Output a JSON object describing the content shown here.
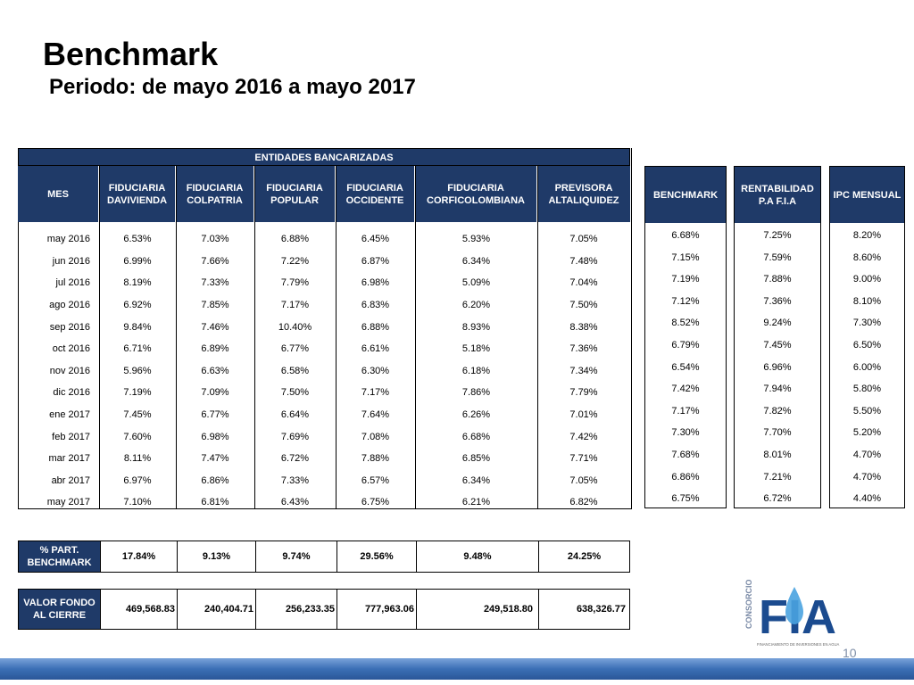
{
  "title": "Benchmark",
  "subtitle": "Periodo: de mayo 2016 a mayo 2017",
  "group_header": "ENTIDADES BANCARIZADAS",
  "columns": {
    "mes": "MES",
    "c1": "FIDUCIARIA DAVIVIENDA",
    "c2": "FIDUCIARIA COLPATRIA",
    "c3": "FIDUCIARIA POPULAR",
    "c4": "FIDUCIARIA OCCIDENTE",
    "c5": "FIDUCIARIA CORFICOLOMBIANA",
    "c6": "PREVISORA ALTALIQUIDEZ"
  },
  "rows": [
    [
      "may 2016",
      "6.53%",
      "7.03%",
      "6.88%",
      "6.45%",
      "5.93%",
      "7.05%"
    ],
    [
      "jun 2016",
      "6.99%",
      "7.66%",
      "7.22%",
      "6.87%",
      "6.34%",
      "7.48%"
    ],
    [
      "jul 2016",
      "8.19%",
      "7.33%",
      "7.79%",
      "6.98%",
      "5.09%",
      "7.04%"
    ],
    [
      "ago 2016",
      "6.92%",
      "7.85%",
      "7.17%",
      "6.83%",
      "6.20%",
      "7.50%"
    ],
    [
      "sep 2016",
      "9.84%",
      "7.46%",
      "10.40%",
      "6.88%",
      "8.93%",
      "8.38%"
    ],
    [
      "oct 2016",
      "6.71%",
      "6.89%",
      "6.77%",
      "6.61%",
      "5.18%",
      "7.36%"
    ],
    [
      "nov 2016",
      "5.96%",
      "6.63%",
      "6.58%",
      "6.30%",
      "6.18%",
      "7.34%"
    ],
    [
      "dic 2016",
      "7.19%",
      "7.09%",
      "7.50%",
      "7.17%",
      "7.86%",
      "7.79%"
    ],
    [
      "ene 2017",
      "7.45%",
      "6.77%",
      "6.64%",
      "7.64%",
      "6.26%",
      "7.01%"
    ],
    [
      "feb 2017",
      "7.60%",
      "6.98%",
      "7.69%",
      "7.08%",
      "6.68%",
      "7.42%"
    ],
    [
      "mar 2017",
      "8.11%",
      "7.47%",
      "6.72%",
      "7.88%",
      "6.85%",
      "7.71%"
    ],
    [
      "abr 2017",
      "6.97%",
      "6.86%",
      "7.33%",
      "6.57%",
      "6.34%",
      "7.05%"
    ],
    [
      "may 2017",
      "7.10%",
      "6.81%",
      "6.43%",
      "6.75%",
      "6.21%",
      "6.82%"
    ]
  ],
  "benchmark": {
    "header": "BENCHMARK",
    "values": [
      "6.68%",
      "7.15%",
      "7.19%",
      "7.12%",
      "8.52%",
      "6.79%",
      "6.54%",
      "7.42%",
      "7.17%",
      "7.30%",
      "7.68%",
      "6.86%",
      "6.75%"
    ]
  },
  "rentabilidad": {
    "header": "RENTABILIDAD P.A F.I.A",
    "values": [
      "7.25%",
      "7.59%",
      "7.88%",
      "7.36%",
      "9.24%",
      "7.45%",
      "6.96%",
      "7.94%",
      "7.82%",
      "7.70%",
      "8.01%",
      "7.21%",
      "6.72%"
    ]
  },
  "ipc": {
    "header": "IPC MENSUAL",
    "values": [
      "8.20%",
      "8.60%",
      "9.00%",
      "8.10%",
      "7.30%",
      "6.50%",
      "6.00%",
      "5.80%",
      "5.50%",
      "5.20%",
      "4.70%",
      "4.70%",
      "4.40%"
    ]
  },
  "part": {
    "label": "% PART. BENCHMARK",
    "values": [
      "17.84%",
      "9.13%",
      "9.74%",
      "29.56%",
      "9.48%",
      "24.25%"
    ]
  },
  "valor": {
    "label": "VALOR FONDO AL CIERRE",
    "values": [
      "469,568.83",
      "240,404.71",
      "256,233.35",
      "777,963.06",
      "249,518.80",
      "638,326.77"
    ]
  },
  "logo": {
    "text": "FIA",
    "side_text": "CONSORCIO",
    "tagline": "FINANCIAMIENTO DE INVERSIONES EN AGUA"
  },
  "page_number": "10",
  "colors": {
    "header_bg": "#1f3a68",
    "footer": "#3b6fb5"
  }
}
